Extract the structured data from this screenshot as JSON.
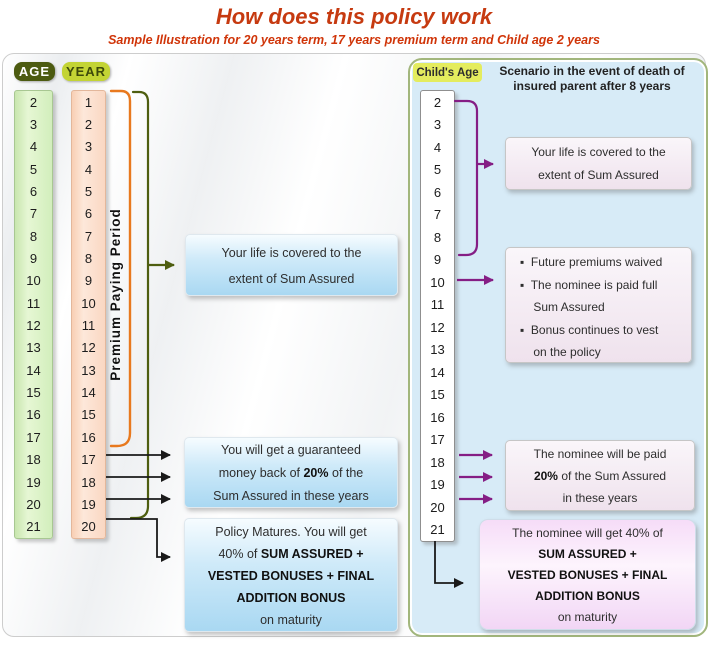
{
  "title": "How does this policy work",
  "subtitle": "Sample Illustration for 20 years term, 17 years premium term and Child age 2 years",
  "colors": {
    "title_red": "#c63a10",
    "bracket_orange": "#e8791e",
    "bracket_green": "#4e5e10",
    "arrow_purple": "#851e85",
    "arrow_black": "#1a1a1a",
    "panel_blue": "#d7ebf7"
  },
  "left": {
    "age_label": "AGE",
    "year_label": "YEAR",
    "premium_period_label": "Premium Paying Period",
    "ages": [
      "2",
      "3",
      "4",
      "5",
      "6",
      "7",
      "8",
      "9",
      "10",
      "11",
      "12",
      "13",
      "14",
      "15",
      "16",
      "17",
      "18",
      "19",
      "20",
      "21"
    ],
    "years": [
      "1",
      "2",
      "3",
      "4",
      "5",
      "6",
      "7",
      "8",
      "9",
      "10",
      "11",
      "12",
      "13",
      "14",
      "15",
      "16",
      "17",
      "18",
      "19",
      "20"
    ]
  },
  "left_boxes": {
    "life_cover": {
      "lines": [
        [
          [
            "Your life is covered to the",
            false
          ]
        ],
        [
          [
            "extent of Sum Assured",
            false
          ]
        ]
      ]
    },
    "money_back": {
      "lines": [
        [
          [
            "You will get a guaranteed",
            false
          ]
        ],
        [
          [
            "money back of ",
            false
          ],
          [
            "20%",
            true
          ],
          [
            " of the",
            false
          ]
        ],
        [
          [
            "Sum Assured in these years",
            false
          ]
        ]
      ]
    },
    "maturity": {
      "lines": [
        [
          [
            "Policy Matures. You will get",
            false
          ]
        ],
        [
          [
            "40% of ",
            false
          ],
          [
            "SUM ASSURED +",
            true
          ]
        ],
        [
          [
            "VESTED BONUSES + FINAL",
            true
          ]
        ],
        [
          [
            "ADDITION BONUS",
            true
          ]
        ],
        [
          [
            "on maturity",
            false
          ]
        ]
      ]
    }
  },
  "right": {
    "childs_age_label": "Child's Age",
    "scenario_heading": "Scenario in the event of death of insured parent after 8 years",
    "child_ages": [
      "2",
      "3",
      "4",
      "5",
      "6",
      "7",
      "8",
      "9",
      "10",
      "11",
      "12",
      "13",
      "14",
      "15",
      "16",
      "17",
      "18",
      "19",
      "20",
      "21"
    ]
  },
  "right_boxes": {
    "life_cover": {
      "lines": [
        [
          [
            "Your life is covered to the",
            false
          ]
        ],
        [
          [
            "extent of Sum Assured",
            false
          ]
        ]
      ]
    },
    "death_benefits": {
      "lines": [
        [
          [
            "▪  Future premiums waived",
            false
          ]
        ],
        [
          [
            "▪  The nominee is paid full",
            false
          ]
        ],
        [
          [
            "    Sum Assured",
            false
          ]
        ],
        [
          [
            "▪  Bonus continues to vest",
            false
          ]
        ],
        [
          [
            "    on the policy",
            false
          ]
        ]
      ]
    },
    "nominee_money_back": {
      "lines": [
        [
          [
            "The nominee will be paid",
            false
          ]
        ],
        [
          [
            "20%",
            true
          ],
          [
            " of the Sum Assured",
            false
          ]
        ],
        [
          [
            "in these years",
            false
          ]
        ]
      ]
    },
    "nominee_maturity": {
      "lines": [
        [
          [
            "The nominee will get 40% of",
            false
          ]
        ],
        [
          [
            "SUM ASSURED +",
            true
          ]
        ],
        [
          [
            "VESTED BONUSES + FINAL",
            true
          ]
        ],
        [
          [
            "ADDITION BONUS",
            true
          ]
        ],
        [
          [
            "on maturity",
            false
          ]
        ]
      ]
    }
  }
}
